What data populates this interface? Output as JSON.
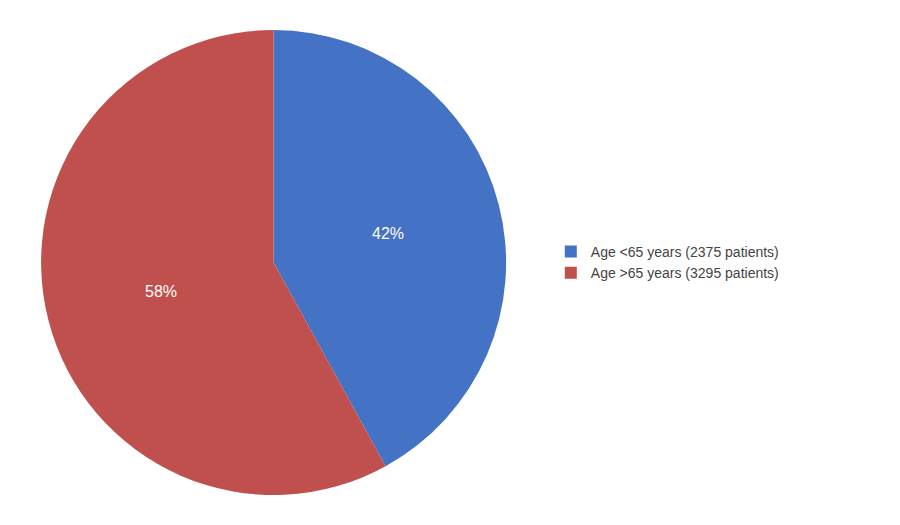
{
  "chart_data": {
    "type": "pie",
    "categories": [
      "Age <65 years (2375 patients)",
      "Age >65 years (3295 patients)"
    ],
    "values": [
      42,
      58
    ],
    "value_labels": [
      "42%",
      "58%"
    ],
    "data_labels": true,
    "colors": [
      "#4472C4",
      "#C0504D"
    ],
    "legend": "right"
  }
}
